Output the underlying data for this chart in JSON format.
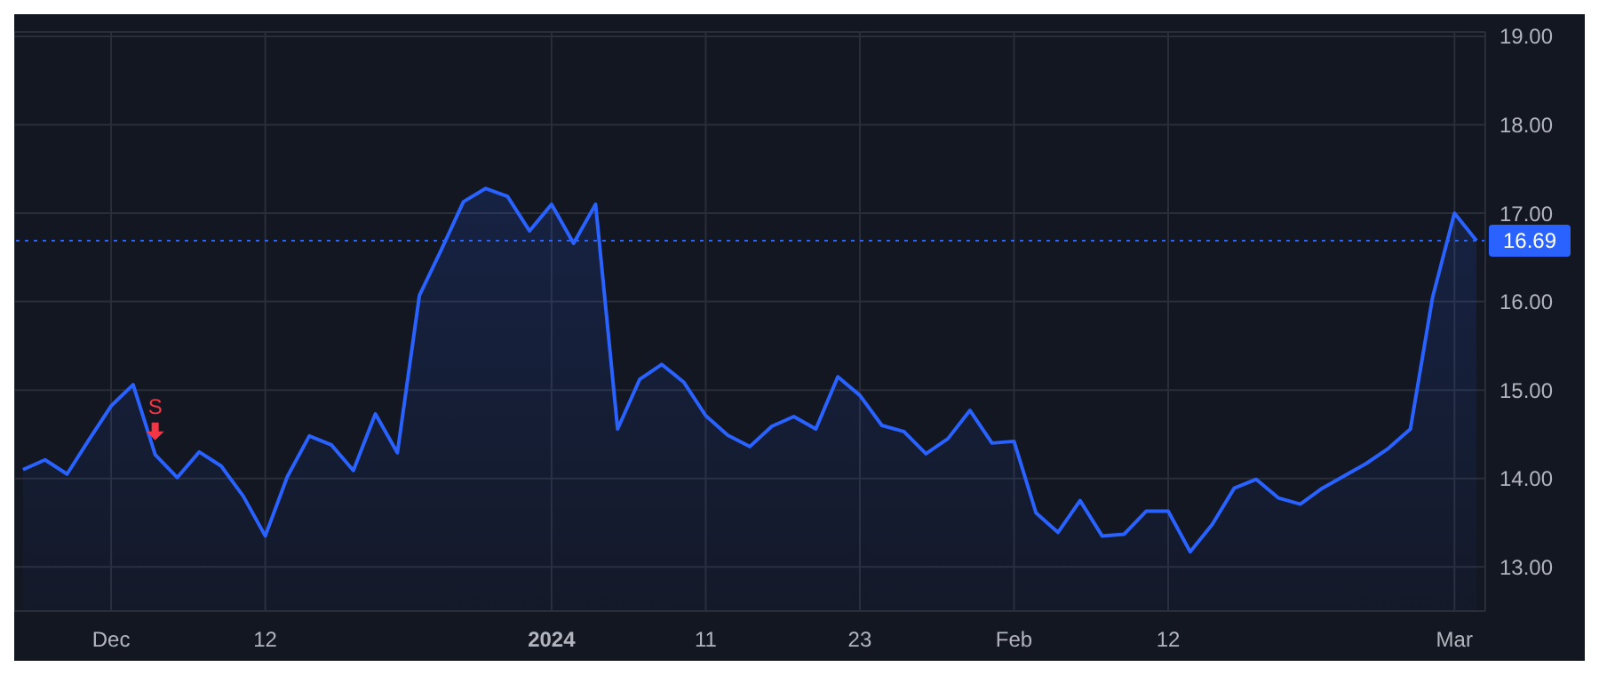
{
  "chart_data": {
    "type": "area",
    "categories": [
      null,
      null,
      null,
      null,
      "Dec",
      null,
      null,
      null,
      null,
      null,
      null,
      "12",
      null,
      null,
      null,
      null,
      null,
      null,
      null,
      null,
      null,
      null,
      null,
      null,
      "2024",
      null,
      null,
      null,
      null,
      null,
      null,
      "11",
      null,
      null,
      null,
      null,
      null,
      null,
      "23",
      null,
      null,
      null,
      null,
      null,
      null,
      "Feb",
      null,
      null,
      null,
      null,
      null,
      null,
      "12",
      null,
      null,
      null,
      null,
      null,
      null,
      null,
      null,
      null,
      null,
      null,
      null,
      "Mar",
      null
    ],
    "values": [
      14.1,
      14.21,
      14.05,
      14.44,
      14.82,
      15.06,
      14.27,
      14.01,
      14.3,
      14.14,
      13.8,
      13.35,
      14.02,
      14.48,
      14.38,
      14.09,
      14.73,
      14.29,
      16.07,
      16.59,
      17.13,
      17.28,
      17.19,
      16.8,
      17.1,
      16.66,
      17.1,
      14.56,
      15.12,
      15.29,
      15.09,
      14.71,
      14.49,
      14.36,
      14.59,
      14.7,
      14.56,
      15.15,
      14.94,
      14.6,
      14.53,
      14.28,
      14.45,
      14.77,
      14.4,
      14.42,
      13.61,
      13.39,
      13.75,
      13.35,
      13.37,
      13.63,
      13.63,
      13.17,
      13.48,
      13.89,
      13.99,
      13.78,
      13.71,
      13.89,
      14.03,
      14.17,
      14.34,
      14.56,
      16.04,
      17.0,
      16.69
    ],
    "color": "#2962ff",
    "ylim": [
      12.5,
      19.05
    ],
    "yticks": [
      {
        "value": 13,
        "label": "13.00"
      },
      {
        "value": 14,
        "label": "14.00"
      },
      {
        "value": 15,
        "label": "15.00"
      },
      {
        "value": 16,
        "label": "16.00"
      },
      {
        "value": 17,
        "label": "17.00"
      },
      {
        "value": 18,
        "label": "18.00"
      },
      {
        "value": 19,
        "label": "19.00"
      }
    ],
    "ref_lines": [
      {
        "axis": "y",
        "value": 16.69,
        "label": "16.69",
        "color": "#2962ff",
        "line_style": "dotted"
      }
    ],
    "annotations": [
      "S"
    ],
    "grid": true,
    "line_style": "solid",
    "marker": "none"
  }
}
